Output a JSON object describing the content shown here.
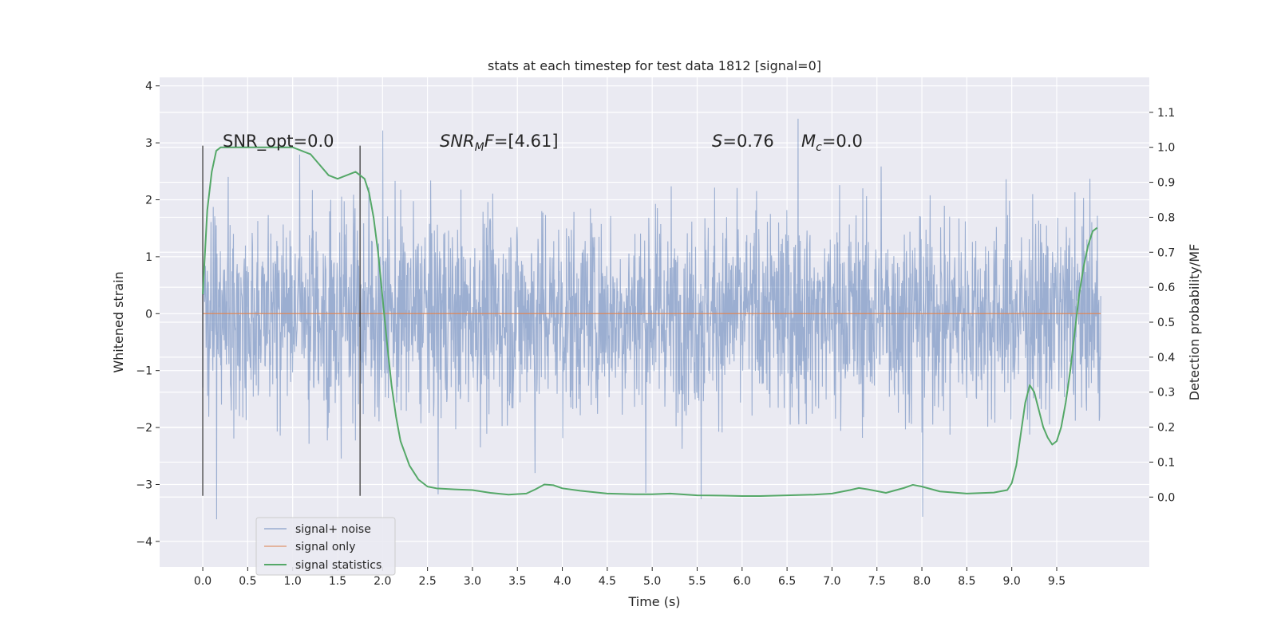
{
  "chart_data": {
    "type": "line",
    "title": "stats at each timestep for test data 1812 [signal=0]",
    "xlabel": "Time (s)",
    "ylabel": "Whitened strain",
    "y2label": "Detection probability/MF",
    "xlim": [
      -0.48,
      10.53
    ],
    "ylim": [
      -4.45,
      4.15
    ],
    "y2lim": [
      -0.2,
      1.2
    ],
    "x_ticks": [
      0.0,
      0.5,
      1.0,
      1.5,
      2.0,
      2.5,
      3.0,
      3.5,
      4.0,
      4.5,
      5.0,
      5.5,
      6.0,
      6.5,
      7.0,
      7.5,
      8.0,
      8.5,
      9.0,
      9.5
    ],
    "x_tick_labels": [
      "0.0",
      "0.5",
      "1.0",
      "1.5",
      "2.0",
      "2.5",
      "3.0",
      "3.5",
      "4.0",
      "4.5",
      "5.0",
      "5.5",
      "6.0",
      "6.5",
      "7.0",
      "7.5",
      "8.0",
      "8.5",
      "9.0",
      "9.5"
    ],
    "y_ticks": [
      4,
      3,
      2,
      1,
      0,
      -1,
      -2,
      -3,
      -4
    ],
    "y_tick_labels": [
      "4",
      "3",
      "2",
      "1",
      "0",
      "−1",
      "−2",
      "−3",
      "−4"
    ],
    "y2_ticks": [
      1.1,
      1.0,
      0.9,
      0.8,
      0.7,
      0.6,
      0.5,
      0.4,
      0.3,
      0.2,
      0.1,
      0.0
    ],
    "y2_tick_labels": [
      "1.1",
      "1.0",
      "0.9",
      "0.8",
      "0.7",
      "0.6",
      "0.5",
      "0.4",
      "0.3",
      "0.2",
      "0.1",
      "0.0"
    ],
    "grid": true,
    "legend_position": "lower-left",
    "annotations": [
      {
        "text": "SNR_opt=0.0",
        "x": 0.2,
        "y2": 1.0
      },
      {
        "text": "SNR_MF=[4.61]",
        "x": 2.6,
        "y2": 1.0
      },
      {
        "text": "S=0.76",
        "x": 5.6,
        "y2": 1.0
      },
      {
        "text": "M_c=0.0",
        "x": 6.6,
        "y2": 1.0
      }
    ],
    "vertical_markers": [
      {
        "x": 0.0,
        "ymin": -3.2,
        "ymax": 2.95
      },
      {
        "x": 1.75,
        "ymin": -3.2,
        "ymax": 2.95
      }
    ],
    "series": [
      {
        "name": "signal+ noise",
        "axis": "left",
        "color": "#4c72b0",
        "kind": "noise",
        "x_range": [
          0.0,
          9.99
        ],
        "approx_envelope": [
          -4.1,
          3.8
        ]
      },
      {
        "name": "signal only",
        "axis": "left",
        "color": "#dd8452",
        "x": [
          0.0,
          9.99
        ],
        "values": [
          0.0,
          0.0
        ]
      },
      {
        "name": "signal statistics",
        "axis": "right",
        "color": "#55a868",
        "x": [
          0.0,
          0.05,
          0.1,
          0.15,
          0.2,
          0.3,
          0.4,
          0.6,
          0.8,
          1.0,
          1.1,
          1.2,
          1.3,
          1.4,
          1.5,
          1.6,
          1.7,
          1.8,
          1.85,
          1.9,
          1.95,
          2.0,
          2.05,
          2.1,
          2.15,
          2.2,
          2.3,
          2.4,
          2.5,
          2.6,
          2.8,
          3.0,
          3.2,
          3.4,
          3.6,
          3.7,
          3.8,
          3.9,
          4.0,
          4.2,
          4.5,
          4.8,
          5.0,
          5.2,
          5.5,
          5.8,
          6.0,
          6.2,
          6.5,
          6.8,
          7.0,
          7.2,
          7.3,
          7.4,
          7.6,
          7.8,
          7.9,
          8.0,
          8.2,
          8.5,
          8.8,
          8.95,
          9.0,
          9.05,
          9.1,
          9.15,
          9.2,
          9.25,
          9.3,
          9.35,
          9.4,
          9.45,
          9.5,
          9.55,
          9.6,
          9.65,
          9.7,
          9.75,
          9.8,
          9.85,
          9.9,
          9.95
        ],
        "values": [
          0.58,
          0.82,
          0.93,
          0.99,
          1.0,
          1.0,
          1.0,
          1.0,
          1.0,
          1.0,
          0.99,
          0.98,
          0.95,
          0.92,
          0.91,
          0.92,
          0.93,
          0.91,
          0.87,
          0.8,
          0.7,
          0.57,
          0.44,
          0.32,
          0.23,
          0.16,
          0.09,
          0.05,
          0.03,
          0.025,
          0.022,
          0.02,
          0.012,
          0.007,
          0.01,
          0.022,
          0.036,
          0.034,
          0.025,
          0.018,
          0.01,
          0.008,
          0.008,
          0.01,
          0.005,
          0.004,
          0.003,
          0.003,
          0.005,
          0.007,
          0.01,
          0.02,
          0.026,
          0.022,
          0.012,
          0.026,
          0.035,
          0.03,
          0.016,
          0.01,
          0.013,
          0.02,
          0.04,
          0.09,
          0.18,
          0.27,
          0.32,
          0.3,
          0.25,
          0.2,
          0.17,
          0.15,
          0.16,
          0.2,
          0.27,
          0.36,
          0.47,
          0.58,
          0.66,
          0.72,
          0.76,
          0.77
        ]
      }
    ]
  }
}
